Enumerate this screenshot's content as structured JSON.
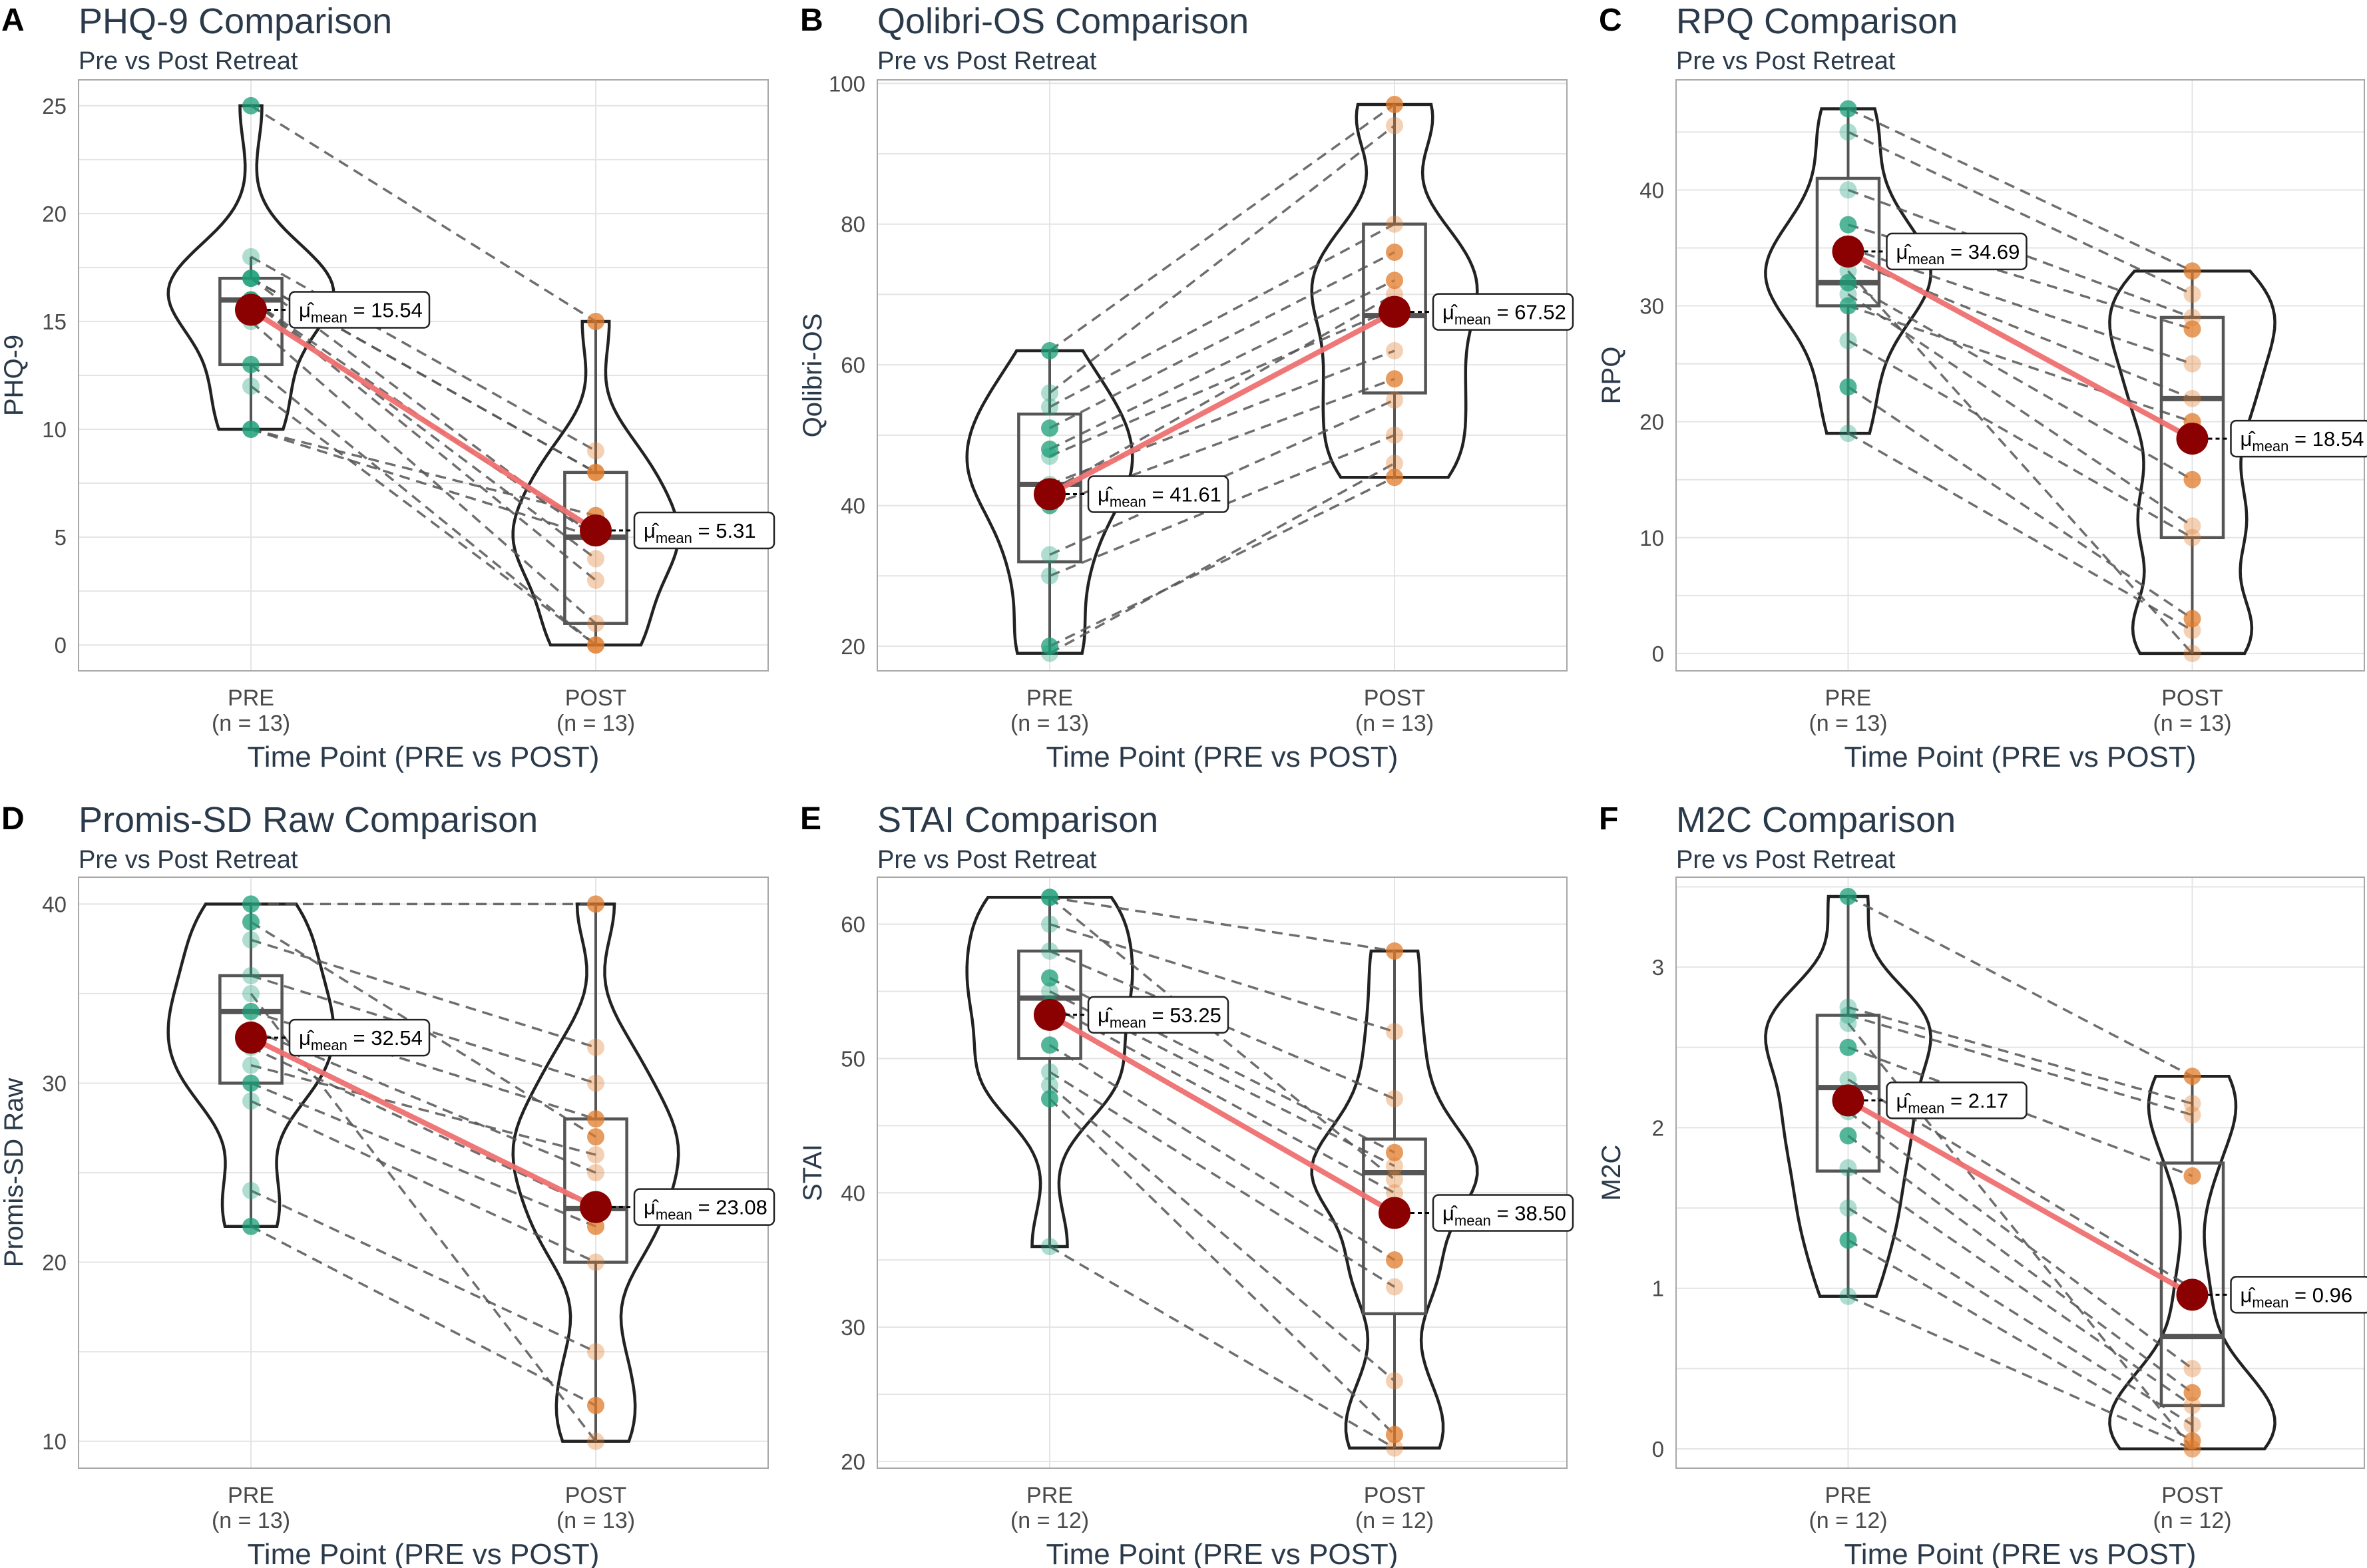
{
  "chart_data": [
    {
      "type": "violin-box-paired",
      "letter": "A",
      "title": "PHQ-9 Comparison",
      "subtitle": "Pre vs Post Retreat",
      "ylabel": "PHQ-9",
      "xlabel": "Time Point (PRE vs POST)",
      "ylim": [
        -1.2,
        26.2
      ],
      "yticks": [
        0,
        5,
        10,
        15,
        20,
        25
      ],
      "categories": [
        "PRE",
        "POST"
      ],
      "n_labels": [
        "(n = 13)",
        "(n = 13)"
      ],
      "violin_range": [
        [
          10,
          25
        ],
        [
          0,
          15
        ]
      ],
      "box": [
        {
          "q1": 13,
          "med": 16,
          "q3": 17,
          "wlo": 10,
          "whi": 18
        },
        {
          "q1": 1,
          "med": 5,
          "q3": 8,
          "wlo": 0,
          "whi": 15
        }
      ],
      "pre": [
        25,
        18,
        17,
        16,
        16,
        15,
        13,
        12,
        10,
        10,
        16,
        17,
        17
      ],
      "post": [
        15,
        9,
        8,
        5,
        3,
        1,
        0,
        0,
        5,
        6,
        4,
        5,
        8
      ],
      "mean_pre": 15.54,
      "mean_post": 5.31,
      "mean_pre_label": "= 15.54",
      "mean_post_label": "= 5.31"
    },
    {
      "type": "violin-box-paired",
      "letter": "B",
      "title": "Qolibri-OS Comparison",
      "subtitle": "Pre vs Post Retreat",
      "ylabel": "Qolibri-OS",
      "xlabel": "Time Point (PRE vs POST)",
      "ylim": [
        16.5,
        100.5
      ],
      "yticks": [
        20,
        40,
        60,
        80,
        100
      ],
      "categories": [
        "PRE",
        "POST"
      ],
      "n_labels": [
        "(n = 13)",
        "(n = 13)"
      ],
      "violin_range": [
        [
          19,
          62
        ],
        [
          44,
          97
        ]
      ],
      "box": [
        {
          "q1": 32,
          "med": 43,
          "q3": 53,
          "wlo": 19,
          "whi": 62
        },
        {
          "q1": 56,
          "med": 67,
          "q3": 80,
          "wlo": 44,
          "whi": 97
        }
      ],
      "pre": [
        62,
        56,
        54,
        51,
        47,
        43,
        40,
        33,
        30,
        20,
        19,
        42,
        48
      ],
      "post": [
        97,
        94,
        80,
        76,
        68,
        62,
        58,
        55,
        50,
        44,
        46,
        70,
        72
      ],
      "mean_pre": 41.61,
      "mean_post": 67.52,
      "mean_pre_label": "= 41.61",
      "mean_post_label": "= 67.52"
    },
    {
      "type": "violin-box-paired",
      "letter": "C",
      "title": "RPQ Comparison",
      "subtitle": "Pre vs Post Retreat",
      "ylabel": "RPQ",
      "xlabel": "Time Point (PRE vs POST)",
      "ylim": [
        -1.5,
        49.5
      ],
      "yticks": [
        0,
        10,
        20,
        30,
        40
      ],
      "categories": [
        "PRE",
        "POST"
      ],
      "n_labels": [
        "(n = 13)",
        "(n = 13)"
      ],
      "violin_range": [
        [
          19,
          47
        ],
        [
          0,
          33
        ]
      ],
      "box": [
        {
          "q1": 30,
          "med": 32,
          "q3": 41,
          "wlo": 19,
          "whi": 47
        },
        {
          "q1": 10,
          "med": 22,
          "q3": 29,
          "wlo": 0,
          "whi": 33
        }
      ],
      "pre": [
        47,
        45,
        40,
        37,
        35,
        34,
        32,
        31,
        27,
        23,
        19,
        33,
        30
      ],
      "post": [
        33,
        31,
        29,
        28,
        25,
        22,
        15,
        11,
        10,
        3,
        2,
        0,
        20
      ],
      "mean_pre": 34.69,
      "mean_post": 18.54,
      "mean_pre_label": "= 34.69",
      "mean_post_label": "= 18.54"
    },
    {
      "type": "violin-box-paired",
      "letter": "D",
      "title": "Promis-SD Raw Comparison",
      "subtitle": "Pre vs Post Retreat",
      "ylabel": "Promis-SD Raw",
      "xlabel": "Time Point (PRE vs POST)",
      "ylim": [
        8.5,
        41.5
      ],
      "yticks": [
        10,
        20,
        30,
        40
      ],
      "categories": [
        "PRE",
        "POST"
      ],
      "n_labels": [
        "(n = 13)",
        "(n = 13)"
      ],
      "violin_range": [
        [
          22,
          40
        ],
        [
          10,
          40
        ]
      ],
      "box": [
        {
          "q1": 30,
          "med": 34,
          "q3": 36,
          "wlo": 22,
          "whi": 40
        },
        {
          "q1": 20,
          "med": 23,
          "q3": 28,
          "wlo": 10,
          "whi": 40
        }
      ],
      "pre": [
        40,
        38,
        36,
        34,
        33,
        32,
        30,
        29,
        24,
        22,
        35,
        31,
        39
      ],
      "post": [
        40,
        32,
        30,
        28,
        25,
        23,
        22,
        20,
        15,
        12,
        10,
        26,
        27
      ],
      "mean_pre": 32.54,
      "mean_post": 23.08,
      "mean_pre_label": "= 32.54",
      "mean_post_label": "= 23.08"
    },
    {
      "type": "violin-box-paired",
      "letter": "E",
      "title": "STAI Comparison",
      "subtitle": "Pre vs Post Retreat",
      "ylabel": "STAI",
      "xlabel": "Time Point (PRE vs POST)",
      "ylim": [
        19.5,
        63.5
      ],
      "yticks": [
        20,
        30,
        40,
        50,
        60
      ],
      "categories": [
        "PRE",
        "POST"
      ],
      "n_labels": [
        "(n = 12)",
        "(n = 12)"
      ],
      "violin_range": [
        [
          36,
          62
        ],
        [
          21,
          58
        ]
      ],
      "box": [
        {
          "q1": 50,
          "med": 54.5,
          "q3": 58,
          "wlo": 36,
          "whi": 62
        },
        {
          "q1": 31,
          "med": 41.5,
          "q3": 44,
          "wlo": 21,
          "whi": 58
        }
      ],
      "pre": [
        62,
        60,
        58,
        56,
        55,
        54,
        51,
        49,
        48,
        47,
        36,
        62
      ],
      "post": [
        58,
        52,
        47,
        43,
        42,
        40,
        35,
        33,
        26,
        22,
        21,
        41
      ],
      "mean_pre": 53.25,
      "mean_post": 38.5,
      "mean_pre_label": "= 53.25",
      "mean_post_label": "= 38.50"
    },
    {
      "type": "violin-box-paired",
      "letter": "F",
      "title": "M2C Comparison",
      "subtitle": "Pre vs Post Retreat",
      "ylabel": "M2C",
      "xlabel": "Time Point (PRE vs POST)",
      "ylim": [
        -0.12,
        3.56
      ],
      "yticks": [
        0,
        1,
        2,
        3
      ],
      "categories": [
        "PRE",
        "POST"
      ],
      "n_labels": [
        "(n = 12)",
        "(n = 12)"
      ],
      "violin_range": [
        [
          0.95,
          3.44
        ],
        [
          0,
          2.32
        ]
      ],
      "box": [
        {
          "q1": 1.73,
          "med": 2.25,
          "q3": 2.7,
          "wlo": 0.95,
          "whi": 3.44
        },
        {
          "q1": 0.27,
          "med": 0.7,
          "q3": 1.78,
          "wlo": 0,
          "whi": 2.32
        }
      ],
      "pre": [
        3.44,
        2.75,
        2.7,
        2.5,
        2.3,
        2.1,
        1.95,
        1.75,
        1.5,
        1.3,
        0.95,
        2.65
      ],
      "post": [
        2.32,
        2.15,
        2.08,
        1.7,
        1.0,
        0.5,
        0.35,
        0.27,
        0.15,
        0.05,
        0.0,
        0.0
      ],
      "mean_pre": 2.17,
      "mean_post": 0.96,
      "mean_pre_label": "= 2.17",
      "mean_post_label": "= 0.96"
    }
  ],
  "colors": {
    "pre": "#1b9e77",
    "post": "#e07b2a",
    "mean_point": "#8b0000",
    "mean_line": "#f07070"
  },
  "mean_symbol": "μ̂",
  "mean_subscript": "mean"
}
